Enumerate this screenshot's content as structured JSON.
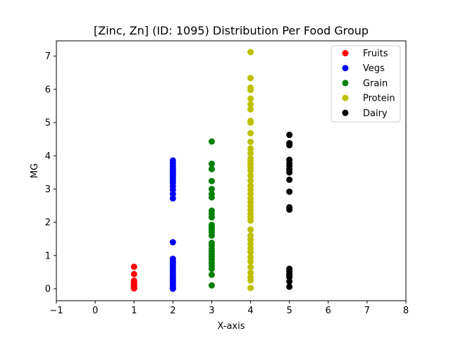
{
  "chart_data": {
    "type": "scatter",
    "title": "[Zinc, Zn] (ID: 1095) Distribution Per Food Group",
    "xlabel": "X-axis",
    "ylabel": "MG",
    "xlim": [
      -1,
      8
    ],
    "ylim": [
      -0.36,
      7.46
    ],
    "x_ticks": [
      -1,
      0,
      1,
      2,
      3,
      4,
      5,
      6,
      7,
      8
    ],
    "y_ticks": [
      0,
      1,
      2,
      3,
      4,
      5,
      6,
      7
    ],
    "grid": false,
    "legend_position": "top-right",
    "series": [
      {
        "name": "Fruits",
        "color": "#ff0000",
        "x": 1,
        "values": [
          0.66,
          0.44,
          0.24,
          0.2,
          0.16,
          0.12,
          0.09,
          0.06,
          0.04,
          0.02,
          0.01
        ]
      },
      {
        "name": "Vegs",
        "color": "#0000ff",
        "x": 2,
        "values": [
          3.86,
          3.78,
          3.7,
          3.62,
          3.55,
          3.5,
          3.45,
          3.4,
          3.33,
          3.25,
          3.18,
          3.08,
          2.98,
          2.85,
          2.72,
          1.4,
          0.9,
          0.82,
          0.75,
          0.68,
          0.6,
          0.52,
          0.45,
          0.38,
          0.32,
          0.26,
          0.2,
          0.14,
          0.08,
          0.03,
          0.0
        ]
      },
      {
        "name": "Grain",
        "color": "#008000",
        "x": 3,
        "values": [
          4.43,
          3.76,
          3.6,
          3.24,
          3.0,
          2.85,
          2.75,
          2.35,
          2.25,
          2.15,
          1.92,
          1.85,
          1.78,
          1.7,
          1.6,
          1.38,
          1.3,
          1.2,
          1.12,
          1.04,
          0.96,
          0.88,
          0.78,
          0.7,
          0.6,
          0.42,
          0.1
        ]
      },
      {
        "name": "Protein",
        "color": "#bfbf00",
        "x": 4,
        "values": [
          7.12,
          6.34,
          6.05,
          5.98,
          5.72,
          5.55,
          5.4,
          5.05,
          5.0,
          4.68,
          4.42,
          4.22,
          4.08,
          3.92,
          3.85,
          3.75,
          3.65,
          3.55,
          3.4,
          3.25,
          3.1,
          2.98,
          2.85,
          2.72,
          2.6,
          2.48,
          2.36,
          2.25,
          2.15,
          2.05,
          1.78,
          1.6,
          1.48,
          1.35,
          1.22,
          1.1,
          0.95,
          0.82,
          0.65,
          0.48,
          0.35,
          0.25,
          0.02
        ]
      },
      {
        "name": "Dairy",
        "color": "#000000",
        "x": 5,
        "values": [
          4.63,
          4.38,
          4.32,
          3.88,
          3.78,
          3.7,
          3.6,
          3.5,
          3.28,
          2.92,
          2.45,
          2.38,
          0.6,
          0.52,
          0.45,
          0.4,
          0.35,
          0.22,
          0.06
        ]
      }
    ]
  }
}
